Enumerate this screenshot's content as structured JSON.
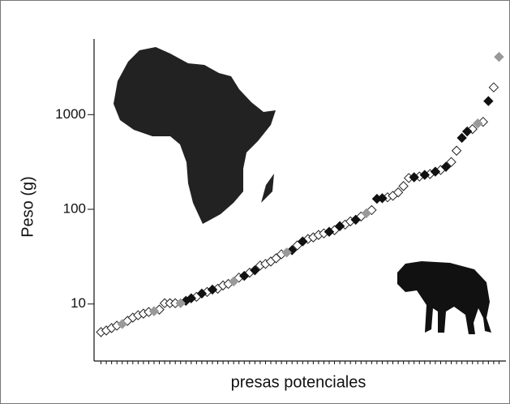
{
  "chart_data": {
    "type": "scatter",
    "y_label": "Peso (g)",
    "x_label": "presas potenciales",
    "y_log": true,
    "ylim": [
      2.5,
      6300
    ],
    "yticks": [
      10,
      100,
      1000
    ],
    "xlim": [
      0,
      77
    ],
    "marker": "diamond",
    "series": [
      {
        "color": "#ffffff",
        "x": [
          1,
          2,
          3,
          4,
          6,
          7,
          8,
          9,
          10,
          12,
          13,
          14,
          15,
          19,
          21,
          23,
          24,
          25,
          27,
          29,
          31,
          32,
          33,
          34,
          35,
          38,
          40,
          41,
          42,
          43,
          45,
          47,
          48,
          50,
          52,
          55,
          56,
          57,
          58,
          59,
          61,
          63,
          65,
          67,
          68,
          71,
          73,
          75
        ],
        "values": [
          5.05,
          5.25,
          5.57,
          5.9,
          6.64,
          7.18,
          7.61,
          7.91,
          8.23,
          8.73,
          10.2,
          10.2,
          10.2,
          11.9,
          13.4,
          14.5,
          15.7,
          16.3,
          19.0,
          21.4,
          25.5,
          26.5,
          28.1,
          30.4,
          33.5,
          41.6,
          48.6,
          50.5,
          53.6,
          55.7,
          60.2,
          69.0,
          74.6,
          83.9,
          98.2,
          134,
          139,
          151,
          176,
          214,
          222,
          236,
          260,
          316,
          416,
          703,
          839,
          1940
        ]
      },
      {
        "color": "#111111",
        "x": [
          17,
          18,
          20,
          22,
          28,
          30,
          37,
          39,
          44,
          46,
          49,
          53,
          54,
          60,
          62,
          64,
          66,
          69,
          70,
          74
        ],
        "values": [
          10.8,
          11.5,
          12.9,
          14.2,
          19.8,
          22.7,
          37.0,
          45.8,
          57.9,
          66.4,
          77.6,
          129,
          131,
          218,
          231,
          250,
          281,
          568,
          664,
          1390
        ]
      },
      {
        "color": "#999999",
        "x": [
          5,
          11,
          16,
          26,
          36,
          51,
          72,
          76
        ],
        "values": [
          6.14,
          8.39,
          10.2,
          17.3,
          35.0,
          90.8,
          807,
          4070
        ]
      }
    ]
  }
}
